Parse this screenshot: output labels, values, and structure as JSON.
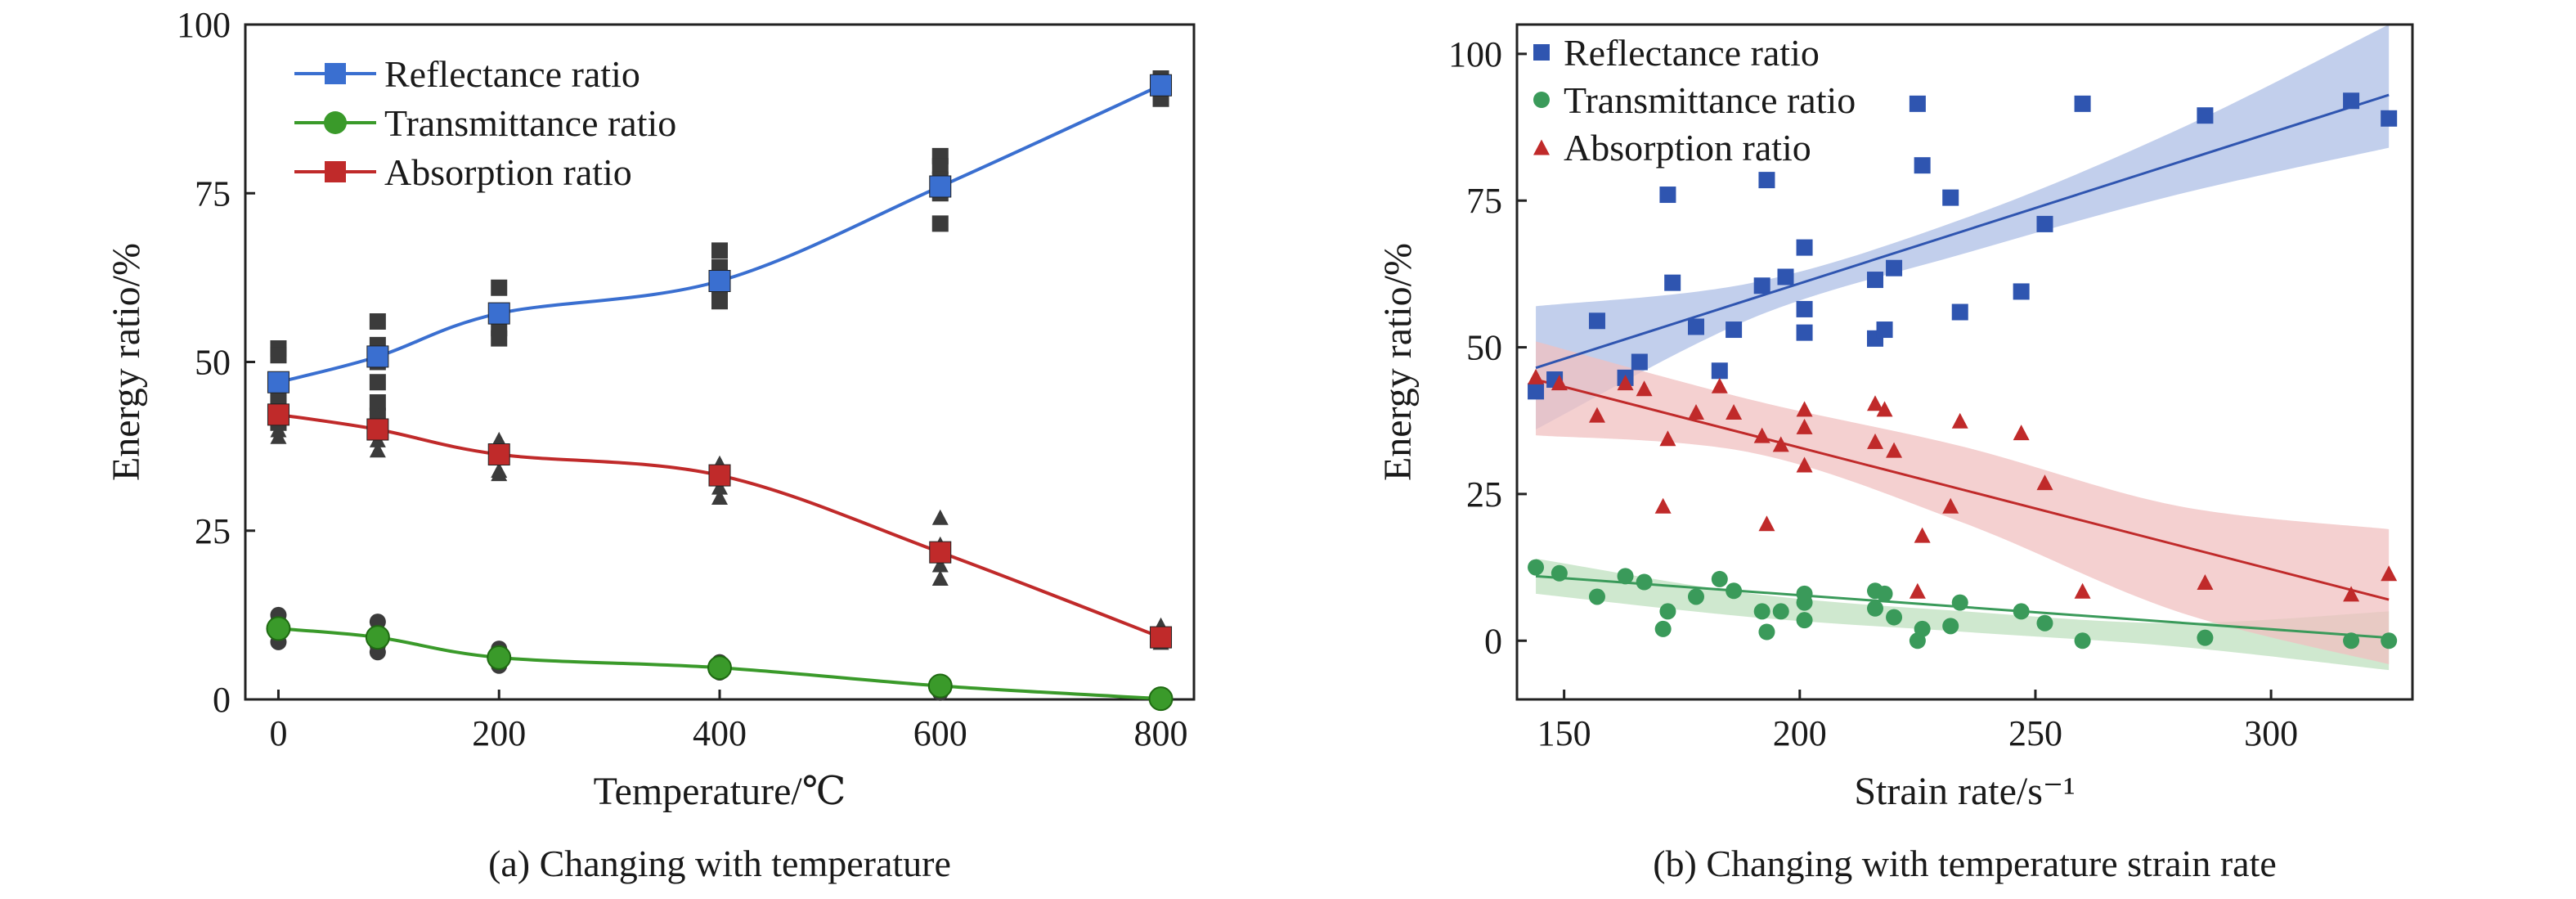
{
  "chart_data": [
    {
      "type": "line",
      "caption": "(a) Changing with temperature",
      "xlabel": "Temperature/℃",
      "ylabel": "Energy ratio/%",
      "xlim": [
        -30,
        830
      ],
      "ylim": [
        0,
        100
      ],
      "xticks": [
        0,
        200,
        400,
        600,
        800
      ],
      "yticks": [
        0,
        25,
        50,
        75,
        100
      ],
      "xtick_labels": [
        "0",
        "200",
        "400",
        "600",
        "800"
      ],
      "ytick_labels": [
        "0",
        "25",
        "50",
        "75",
        "100"
      ],
      "x": [
        0,
        90,
        200,
        400,
        600,
        800
      ],
      "legend_position": "top-left",
      "series": [
        {
          "name": "Reflectance ratio",
          "color": "#3a6fd0",
          "marker": "square",
          "values": [
            47.0,
            50.8,
            57.2,
            62.0,
            76.0,
            91.0
          ],
          "raw": [
            [
              0,
              52
            ],
            [
              0,
              51
            ],
            [
              0,
              46
            ],
            [
              0,
              44
            ],
            [
              0,
              43.5
            ],
            [
              0,
              41
            ],
            [
              90,
              56
            ],
            [
              90,
              52.5
            ],
            [
              90,
              50
            ],
            [
              90,
              47
            ],
            [
              90,
              44
            ],
            [
              90,
              42
            ],
            [
              200,
              61
            ],
            [
              200,
              57
            ],
            [
              200,
              55
            ],
            [
              200,
              53.5
            ],
            [
              400,
              66.5
            ],
            [
              400,
              64
            ],
            [
              400,
              61
            ],
            [
              400,
              59
            ],
            [
              600,
              80.5
            ],
            [
              600,
              79
            ],
            [
              600,
              77
            ],
            [
              600,
              75
            ],
            [
              600,
              70.5
            ],
            [
              800,
              92
            ],
            [
              800,
              91
            ],
            [
              800,
              89
            ]
          ]
        },
        {
          "name": "Transmittance ratio",
          "color": "#3a9a2a",
          "marker": "circle",
          "values": [
            10.5,
            9.2,
            6.2,
            4.7,
            2.0,
            0.1
          ],
          "raw": [
            [
              0,
              12.5
            ],
            [
              0,
              11.5
            ],
            [
              0,
              10
            ],
            [
              0,
              8.5
            ],
            [
              90,
              11.5
            ],
            [
              90,
              9.5
            ],
            [
              90,
              8
            ],
            [
              90,
              7
            ],
            [
              200,
              7.5
            ],
            [
              200,
              6
            ],
            [
              200,
              5
            ],
            [
              400,
              5.5
            ],
            [
              400,
              4.5
            ],
            [
              400,
              4
            ],
            [
              600,
              2.5
            ],
            [
              600,
              1.5
            ],
            [
              600,
              1
            ],
            [
              800,
              0
            ]
          ]
        },
        {
          "name": "Absorption ratio",
          "color": "#c02a2a",
          "marker": "square",
          "values": [
            42.2,
            40.0,
            36.3,
            33.2,
            21.8,
            9.2
          ],
          "raw": [
            [
              0,
              43.5
            ],
            [
              0,
              41.5
            ],
            [
              0,
              40
            ],
            [
              0,
              39
            ],
            [
              90,
              42
            ],
            [
              90,
              40
            ],
            [
              90,
              38.5
            ],
            [
              90,
              37
            ],
            [
              200,
              38.5
            ],
            [
              200,
              36
            ],
            [
              200,
              34
            ],
            [
              200,
              33.5
            ],
            [
              400,
              35
            ],
            [
              400,
              33
            ],
            [
              400,
              31.5
            ],
            [
              400,
              30
            ],
            [
              600,
              27
            ],
            [
              600,
              23
            ],
            [
              600,
              20
            ],
            [
              600,
              18
            ],
            [
              800,
              11
            ],
            [
              800,
              9
            ],
            [
              800,
              8.5
            ]
          ]
        }
      ]
    },
    {
      "type": "scatter",
      "caption": "(b) Changing with temperature strain rate",
      "xlabel": "Strain rate/s⁻¹",
      "ylabel": "Energy ratio/%",
      "xlim": [
        140,
        330
      ],
      "ylim": [
        -10,
        105
      ],
      "xticks": [
        150,
        200,
        250,
        300
      ],
      "yticks": [
        0,
        25,
        50,
        75,
        100
      ],
      "xtick_labels": [
        "150",
        "200",
        "250",
        "300"
      ],
      "ytick_labels": [
        "0",
        "25",
        "50",
        "75",
        "100"
      ],
      "legend_position": "top-left",
      "series": [
        {
          "name": "Reflectance ratio",
          "color": "#2f55b0",
          "marker": "square",
          "fit": [
            144,
            46.5,
            325,
            93
          ],
          "band": {
            "xs": [
              144,
              190,
              235,
              280,
              325
            ],
            "lo": [
              36,
              55,
              66,
              76,
              84
            ],
            "hi": [
              57,
              61,
              72,
              87,
              105
            ],
            "color": "#aebfe6"
          },
          "points": [
            [
              144,
              42.5
            ],
            [
              148,
              44.5
            ],
            [
              157,
              54.5
            ],
            [
              163,
              44.8
            ],
            [
              166,
              47.5
            ],
            [
              172,
              76
            ],
            [
              173,
              61
            ],
            [
              178,
              53.5
            ],
            [
              183,
              46
            ],
            [
              186,
              53
            ],
            [
              192,
              60.5
            ],
            [
              193,
              78.5
            ],
            [
              197,
              62
            ],
            [
              201,
              67
            ],
            [
              201,
              52.5
            ],
            [
              201,
              56.5
            ],
            [
              216,
              51.5
            ],
            [
              216,
              61.5
            ],
            [
              218,
              53
            ],
            [
              220,
              63.5
            ],
            [
              225,
              91.5
            ],
            [
              226,
              81
            ],
            [
              232,
              75.5
            ],
            [
              234,
              56
            ],
            [
              247,
              59.5
            ],
            [
              252,
              71
            ],
            [
              260,
              91.5
            ],
            [
              286,
              89.5
            ],
            [
              317,
              92
            ],
            [
              325,
              89
            ]
          ]
        },
        {
          "name": "Transmittance ratio",
          "color": "#3a9a5a",
          "marker": "circle",
          "fit": [
            144,
            11,
            325,
            0.5
          ],
          "band": {
            "xs": [
              144,
              190,
              235,
              280,
              325
            ],
            "lo": [
              8,
              4,
              1.5,
              -1,
              -5
            ],
            "hi": [
              14,
              8,
              5,
              3,
              5
            ],
            "color": "#bfe0bf"
          },
          "points": [
            [
              144,
              12.5
            ],
            [
              149,
              11.5
            ],
            [
              157,
              7.5
            ],
            [
              163,
              11
            ],
            [
              167,
              10
            ],
            [
              171,
              2
            ],
            [
              172,
              5
            ],
            [
              178,
              7.5
            ],
            [
              183,
              10.5
            ],
            [
              186,
              8.5
            ],
            [
              192,
              5
            ],
            [
              193,
              1.5
            ],
            [
              196,
              5
            ],
            [
              201,
              8
            ],
            [
              201,
              6.5
            ],
            [
              201,
              3.5
            ],
            [
              216,
              8.5
            ],
            [
              216,
              5.5
            ],
            [
              218,
              8
            ],
            [
              220,
              4
            ],
            [
              225,
              0
            ],
            [
              226,
              2
            ],
            [
              232,
              2.5
            ],
            [
              234,
              6.5
            ],
            [
              247,
              5
            ],
            [
              252,
              3
            ],
            [
              260,
              0
            ],
            [
              286,
              0.5
            ],
            [
              317,
              0
            ],
            [
              325,
              0
            ]
          ]
        },
        {
          "name": "Absorption ratio",
          "color": "#c02a2a",
          "marker": "triangle",
          "fit": [
            144,
            44.5,
            325,
            7
          ],
          "band": {
            "xs": [
              144,
              190,
              235,
              280,
              325
            ],
            "lo": [
              35,
              32,
              20,
              5,
              -4
            ],
            "hi": [
              51,
              41,
              33,
              23,
              19
            ],
            "color": "#f0c0c0"
          },
          "points": [
            [
              144,
              45
            ],
            [
              149,
              44
            ],
            [
              157,
              38.5
            ],
            [
              163,
              44
            ],
            [
              167,
              43
            ],
            [
              171,
              23
            ],
            [
              172,
              34.5
            ],
            [
              178,
              39
            ],
            [
              183,
              43.5
            ],
            [
              186,
              39
            ],
            [
              192,
              35
            ],
            [
              193,
              20
            ],
            [
              196,
              33.5
            ],
            [
              201,
              39.5
            ],
            [
              201,
              36.5
            ],
            [
              201,
              30
            ],
            [
              216,
              40.5
            ],
            [
              216,
              34
            ],
            [
              218,
              39.5
            ],
            [
              220,
              32.5
            ],
            [
              225,
              8.5
            ],
            [
              226,
              18
            ],
            [
              232,
              23
            ],
            [
              234,
              37.5
            ],
            [
              247,
              35.5
            ],
            [
              252,
              27
            ],
            [
              260,
              8.5
            ],
            [
              286,
              10
            ],
            [
              317,
              8
            ],
            [
              325,
              11.5
            ]
          ]
        }
      ]
    }
  ]
}
